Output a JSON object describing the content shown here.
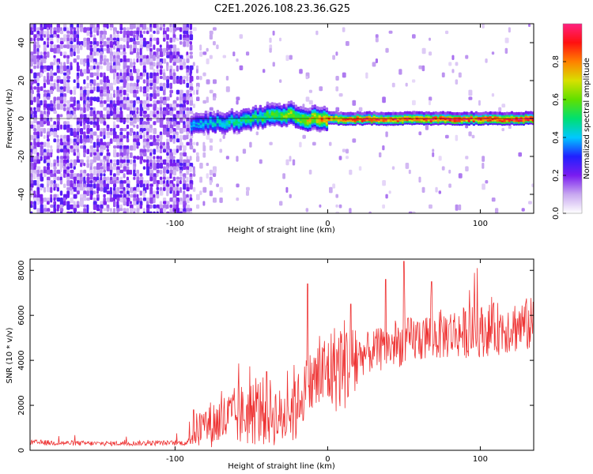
{
  "title": "C2E1.2026.108.23.36.G25",
  "chart_data": [
    {
      "type": "heatmap",
      "xlabel": "Height of straight line (km)",
      "ylabel": "Frequency (Hz)",
      "xlim": [
        -195,
        135
      ],
      "ylim": [
        -50,
        50
      ],
      "xticks": [
        -100,
        0,
        100
      ],
      "yticks": [
        40,
        20,
        0,
        -20,
        -40
      ],
      "xtick_labels": [
        "-100",
        "0",
        "100"
      ],
      "ytick_labels": [
        "40",
        "20",
        "0",
        "-20",
        "-40"
      ],
      "signal_onset_km": -90,
      "noise_floor_start_km": -195,
      "colorbar": {
        "label": "Normalized spectral amplitude",
        "range": [
          0,
          1
        ],
        "ticks": [
          0.0,
          0.2,
          0.4,
          0.6,
          0.8
        ],
        "tick_labels": [
          "0.0",
          "0.2",
          "0.4",
          "0.6",
          "0.8"
        ]
      },
      "tone_trace": {
        "height_km": [
          -90,
          -75,
          -60,
          -45,
          -35,
          -25,
          -15,
          -5,
          5,
          15,
          30,
          50,
          75,
          100,
          130
        ],
        "frequency_hz": [
          -3,
          -2,
          -1,
          1,
          3,
          2,
          0,
          0,
          0,
          0,
          0,
          0,
          0,
          0,
          0
        ],
        "peak_amplitude": [
          0.4,
          0.45,
          0.5,
          0.55,
          0.6,
          0.65,
          0.7,
          0.8,
          0.85,
          0.9,
          0.92,
          0.94,
          0.95,
          0.96,
          0.97
        ]
      }
    },
    {
      "type": "line",
      "xlabel": "Height of straight line (km)",
      "ylabel": "SNR (10 * v/v)",
      "xlim": [
        -195,
        135
      ],
      "ylim": [
        0,
        8500
      ],
      "xticks": [
        -100,
        0,
        100
      ],
      "yticks": [
        0,
        2000,
        4000,
        6000,
        8000
      ],
      "xtick_labels": [
        "-100",
        "0",
        "100"
      ],
      "ytick_labels": [
        "0",
        "2000",
        "4000",
        "6000",
        "8000"
      ],
      "series": [
        {
          "name": "SNR",
          "color": "#ee3333",
          "envelope_x": [
            -195,
            -150,
            -92,
            -88,
            -80,
            -60,
            -40,
            -30,
            -20,
            -10,
            0,
            20,
            40,
            60,
            80,
            100,
            120,
            135
          ],
          "envelope_y": [
            350,
            300,
            330,
            800,
            1100,
            1500,
            1800,
            1400,
            2200,
            3000,
            3500,
            4200,
            4600,
            5000,
            5200,
            5300,
            5500,
            5600
          ],
          "spike_x": [
            -88,
            -40,
            -13,
            15,
            38,
            50,
            68,
            98
          ],
          "spike_y": [
            1800,
            3500,
            7400,
            6500,
            7600,
            8400,
            7500,
            8100
          ]
        }
      ]
    }
  ]
}
